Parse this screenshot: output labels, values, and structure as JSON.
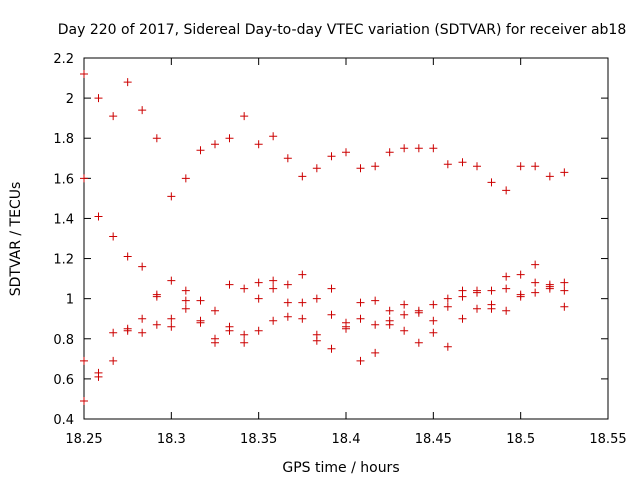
{
  "chart_data": {
    "type": "scatter",
    "title": "Day 220 of 2017, Sidereal Day-to-day VTEC variation (SDTVAR) for receiver ab18",
    "xlabel": "GPS time / hours",
    "ylabel": "SDTVAR / TECUs",
    "xlim": [
      18.25,
      18.55
    ],
    "ylim": [
      0.4,
      2.2
    ],
    "xticks": [
      "18.25",
      "18.3",
      "18.35",
      "18.4",
      "18.45",
      "18.5",
      "18.55"
    ],
    "yticks": [
      "0.4",
      "0.6",
      "0.8",
      "1",
      "1.2",
      "1.4",
      "1.6",
      "1.8",
      "2",
      "2.2"
    ],
    "marker_color": "#cc0000",
    "marker": "+",
    "points": [
      [
        18.25,
        2.12
      ],
      [
        18.25,
        1.6
      ],
      [
        18.25,
        0.69
      ],
      [
        18.25,
        0.49
      ],
      [
        18.2583,
        2.0
      ],
      [
        18.2583,
        1.41
      ],
      [
        18.2583,
        0.63
      ],
      [
        18.2583,
        0.61
      ],
      [
        18.2667,
        1.91
      ],
      [
        18.2667,
        1.31
      ],
      [
        18.2667,
        0.83
      ],
      [
        18.2667,
        0.69
      ],
      [
        18.275,
        2.08
      ],
      [
        18.275,
        1.21
      ],
      [
        18.275,
        0.85
      ],
      [
        18.275,
        0.84
      ],
      [
        18.2833,
        1.94
      ],
      [
        18.2833,
        1.16
      ],
      [
        18.2833,
        0.9
      ],
      [
        18.2833,
        0.83
      ],
      [
        18.2917,
        1.8
      ],
      [
        18.2917,
        1.02
      ],
      [
        18.2917,
        1.01
      ],
      [
        18.2917,
        0.87
      ],
      [
        18.3,
        1.51
      ],
      [
        18.3,
        1.09
      ],
      [
        18.3,
        0.9
      ],
      [
        18.3,
        0.86
      ],
      [
        18.3083,
        1.6
      ],
      [
        18.3083,
        1.04
      ],
      [
        18.3083,
        0.99
      ],
      [
        18.3083,
        0.95
      ],
      [
        18.3167,
        1.74
      ],
      [
        18.3167,
        0.99
      ],
      [
        18.3167,
        0.89
      ],
      [
        18.3167,
        0.88
      ],
      [
        18.325,
        1.77
      ],
      [
        18.325,
        0.94
      ],
      [
        18.325,
        0.8
      ],
      [
        18.325,
        0.78
      ],
      [
        18.3333,
        1.8
      ],
      [
        18.3333,
        1.07
      ],
      [
        18.3333,
        0.86
      ],
      [
        18.3333,
        0.84
      ],
      [
        18.3417,
        1.91
      ],
      [
        18.3417,
        1.05
      ],
      [
        18.3417,
        0.82
      ],
      [
        18.3417,
        0.78
      ],
      [
        18.35,
        1.77
      ],
      [
        18.35,
        1.08
      ],
      [
        18.35,
        1.0
      ],
      [
        18.35,
        0.84
      ],
      [
        18.3583,
        1.81
      ],
      [
        18.3583,
        1.09
      ],
      [
        18.3583,
        1.05
      ],
      [
        18.3583,
        0.89
      ],
      [
        18.3667,
        1.7
      ],
      [
        18.3667,
        1.07
      ],
      [
        18.3667,
        0.98
      ],
      [
        18.3667,
        0.91
      ],
      [
        18.375,
        1.61
      ],
      [
        18.375,
        1.12
      ],
      [
        18.375,
        0.98
      ],
      [
        18.375,
        0.9
      ],
      [
        18.3833,
        1.65
      ],
      [
        18.3833,
        1.0
      ],
      [
        18.3833,
        0.82
      ],
      [
        18.3833,
        0.79
      ],
      [
        18.3917,
        1.71
      ],
      [
        18.3917,
        1.05
      ],
      [
        18.3917,
        0.92
      ],
      [
        18.3917,
        0.75
      ],
      [
        18.4,
        1.73
      ],
      [
        18.4,
        0.88
      ],
      [
        18.4,
        0.86
      ],
      [
        18.4,
        0.85
      ],
      [
        18.4083,
        1.65
      ],
      [
        18.4083,
        0.98
      ],
      [
        18.4083,
        0.9
      ],
      [
        18.4083,
        0.69
      ],
      [
        18.4167,
        1.66
      ],
      [
        18.4167,
        0.99
      ],
      [
        18.4167,
        0.87
      ],
      [
        18.4167,
        0.73
      ],
      [
        18.425,
        1.73
      ],
      [
        18.425,
        0.94
      ],
      [
        18.425,
        0.89
      ],
      [
        18.425,
        0.87
      ],
      [
        18.4333,
        1.75
      ],
      [
        18.4333,
        0.97
      ],
      [
        18.4333,
        0.92
      ],
      [
        18.4333,
        0.84
      ],
      [
        18.4417,
        1.75
      ],
      [
        18.4417,
        0.94
      ],
      [
        18.4417,
        0.93
      ],
      [
        18.4417,
        0.78
      ],
      [
        18.45,
        1.75
      ],
      [
        18.45,
        0.97
      ],
      [
        18.45,
        0.89
      ],
      [
        18.45,
        0.83
      ],
      [
        18.4583,
        1.67
      ],
      [
        18.4583,
        1.0
      ],
      [
        18.4583,
        0.96
      ],
      [
        18.4583,
        0.76
      ],
      [
        18.4667,
        1.68
      ],
      [
        18.4667,
        1.04
      ],
      [
        18.4667,
        1.01
      ],
      [
        18.4667,
        0.9
      ],
      [
        18.475,
        1.66
      ],
      [
        18.475,
        1.04
      ],
      [
        18.475,
        1.03
      ],
      [
        18.475,
        0.95
      ],
      [
        18.4833,
        1.58
      ],
      [
        18.4833,
        1.04
      ],
      [
        18.4833,
        0.97
      ],
      [
        18.4833,
        0.95
      ],
      [
        18.4917,
        1.54
      ],
      [
        18.4917,
        1.11
      ],
      [
        18.4917,
        1.05
      ],
      [
        18.4917,
        0.94
      ],
      [
        18.5,
        1.66
      ],
      [
        18.5,
        1.12
      ],
      [
        18.5,
        1.02
      ],
      [
        18.5,
        1.01
      ],
      [
        18.5083,
        1.66
      ],
      [
        18.5083,
        1.17
      ],
      [
        18.5083,
        1.08
      ],
      [
        18.5083,
        1.03
      ],
      [
        18.5167,
        1.61
      ],
      [
        18.5167,
        1.07
      ],
      [
        18.5167,
        1.06
      ],
      [
        18.5167,
        1.05
      ],
      [
        18.525,
        1.63
      ],
      [
        18.525,
        1.08
      ],
      [
        18.525,
        1.04
      ],
      [
        18.525,
        0.96
      ]
    ]
  }
}
